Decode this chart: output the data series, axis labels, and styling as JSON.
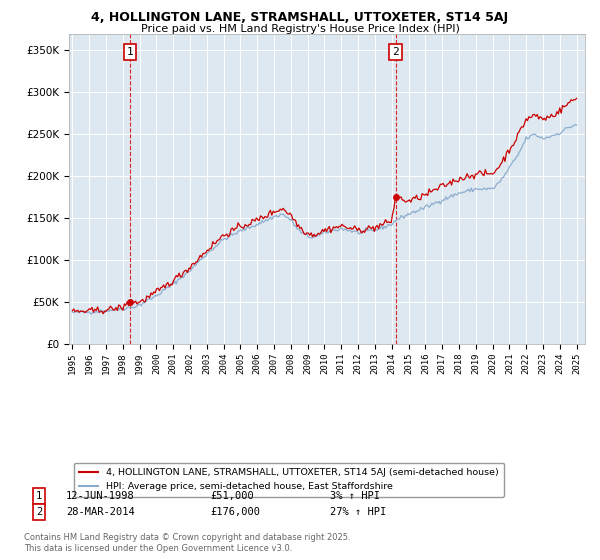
{
  "title1": "4, HOLLINGTON LANE, STRAMSHALL, UTTOXETER, ST14 5AJ",
  "title2": "Price paid vs. HM Land Registry's House Price Index (HPI)",
  "legend_line1": "4, HOLLINGTON LANE, STRAMSHALL, UTTOXETER, ST14 5AJ (semi-detached house)",
  "legend_line2": "HPI: Average price, semi-detached house, East Staffordshire",
  "footer": "Contains HM Land Registry data © Crown copyright and database right 2025.\nThis data is licensed under the Open Government Licence v3.0.",
  "sale1_date": "12-JUN-1998",
  "sale1_price": 51000,
  "sale1_label": "1",
  "sale1_pct": "3% ↑ HPI",
  "sale2_date": "28-MAR-2014",
  "sale2_price": 176000,
  "sale2_label": "2",
  "sale2_pct": "27% ↑ HPI",
  "sale1_year": 1998.44,
  "sale2_year": 2014.23,
  "ylim": [
    0,
    370000
  ],
  "xlim": [
    1994.8,
    2025.5
  ],
  "red_color": "#cc0000",
  "blue_color": "#88aacc",
  "marker_box_color": "#cc0000",
  "background_color": "#dde8f0",
  "grid_color": "#ffffff",
  "vline_color": "#dd0000",
  "hpi_waypoints_x": [
    1995.0,
    1996.0,
    1997.0,
    1998.0,
    1998.5,
    1999.0,
    2000.0,
    2001.0,
    2002.0,
    2003.0,
    2004.0,
    2005.0,
    2006.0,
    2007.0,
    2007.5,
    2008.0,
    2008.5,
    2009.0,
    2009.5,
    2010.0,
    2011.0,
    2012.0,
    2013.0,
    2014.0,
    2014.25,
    2015.0,
    2016.0,
    2017.0,
    2018.0,
    2019.0,
    2020.0,
    2020.5,
    2021.0,
    2021.5,
    2022.0,
    2022.5,
    2023.0,
    2023.5,
    2024.0,
    2024.5,
    2025.0
  ],
  "hpi_waypoints_y": [
    38000,
    38500,
    40000,
    43000,
    44000,
    47000,
    58000,
    72000,
    88000,
    108000,
    125000,
    135000,
    143000,
    152000,
    155000,
    148000,
    135000,
    128000,
    128000,
    133000,
    138000,
    133000,
    136000,
    143000,
    148000,
    155000,
    163000,
    172000,
    180000,
    185000,
    185000,
    195000,
    210000,
    225000,
    245000,
    250000,
    245000,
    248000,
    252000,
    258000,
    262000
  ],
  "red_waypoints_x": [
    1995.0,
    1996.0,
    1997.0,
    1998.0,
    1998.44,
    1999.0,
    2000.0,
    2001.0,
    2002.0,
    2003.0,
    2004.0,
    2005.0,
    2006.0,
    2007.0,
    2007.5,
    2008.0,
    2008.5,
    2009.0,
    2009.5,
    2010.0,
    2011.0,
    2012.0,
    2013.0,
    2014.0,
    2014.23,
    2015.0,
    2016.0,
    2017.0,
    2018.0,
    2019.0,
    2020.0,
    2020.5,
    2021.0,
    2021.5,
    2022.0,
    2022.5,
    2023.0,
    2023.5,
    2024.0,
    2024.5,
    2025.0
  ],
  "red_waypoints_y": [
    39000,
    39500,
    41000,
    44000,
    51000,
    50000,
    62000,
    76000,
    92000,
    112000,
    130000,
    140000,
    148000,
    158000,
    162000,
    154000,
    140000,
    132000,
    131000,
    136000,
    141000,
    136000,
    139000,
    147000,
    176000,
    170000,
    178000,
    188000,
    197000,
    203000,
    203000,
    215000,
    232000,
    248000,
    268000,
    273000,
    268000,
    272000,
    278000,
    287000,
    293000
  ]
}
